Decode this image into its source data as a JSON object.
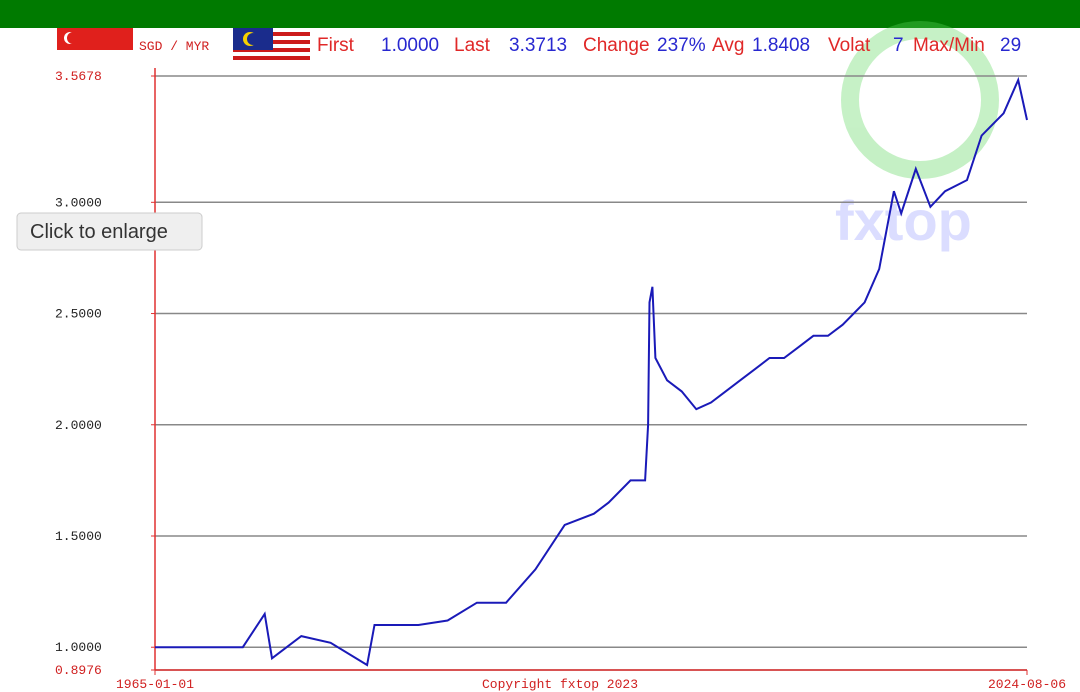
{
  "chart_data": {
    "type": "line",
    "pair": "SGD / MYR",
    "stats": [
      {
        "label": "First",
        "value": "1.0000"
      },
      {
        "label": "Last",
        "value": "3.3713"
      },
      {
        "label": "Change",
        "value": "237%"
      },
      {
        "label": "Avg",
        "value": "1.8408"
      },
      {
        "label": "Volat",
        "value": "7"
      },
      {
        "label": "Max/Min",
        "value": "29"
      }
    ],
    "watermark": "fxtop",
    "tooltip": "Click to enlarge",
    "copyright": "Copyright fxtop 2023",
    "x": [
      1965,
      1971,
      1972.5,
      1973,
      1975,
      1977,
      1979.5,
      1980,
      1983,
      1985,
      1987,
      1989,
      1991,
      1993,
      1995,
      1996,
      1997.5,
      1998.5,
      1998.7,
      1998.8,
      1999,
      1999.2,
      2000,
      2001,
      2002,
      2003,
      2004,
      2005,
      2006,
      2007,
      2008,
      2009,
      2010,
      2011,
      2012,
      2013.5,
      2014.5,
      2015.5,
      2016,
      2017,
      2018,
      2019,
      2020.5,
      2021.5,
      2023,
      2024,
      2024.6
    ],
    "series": [
      {
        "color": "#1a1ab8",
        "values": [
          1.0,
          1.0,
          1.15,
          0.95,
          1.05,
          1.02,
          0.92,
          1.1,
          1.1,
          1.12,
          1.2,
          1.2,
          1.35,
          1.55,
          1.6,
          1.65,
          1.75,
          1.75,
          2.0,
          2.55,
          2.62,
          2.3,
          2.2,
          2.15,
          2.07,
          2.1,
          2.15,
          2.2,
          2.25,
          2.3,
          2.3,
          2.35,
          2.4,
          2.4,
          2.45,
          2.55,
          2.7,
          3.05,
          2.95,
          3.15,
          2.98,
          3.05,
          3.1,
          3.3,
          3.4,
          3.55,
          3.37
        ]
      }
    ],
    "xlim": [
      1965,
      2024.6
    ],
    "xticks": [
      {
        "value": 1965,
        "label": "1965-01-01"
      },
      {
        "value": 2024.6,
        "label": "2024-08-06"
      }
    ],
    "ylim": [
      0.8976,
      3.5678
    ],
    "yticks": [
      0.8976,
      {
        "value": 1,
        "label": "1.0000"
      },
      {
        "value": 1.5,
        "label": "1.5000"
      },
      {
        "value": 2,
        "label": "2.0000"
      },
      {
        "value": 2.5,
        "label": "2.5000"
      },
      {
        "value": 3,
        "label": "3.0000"
      },
      3.5678
    ],
    "grid": true
  }
}
